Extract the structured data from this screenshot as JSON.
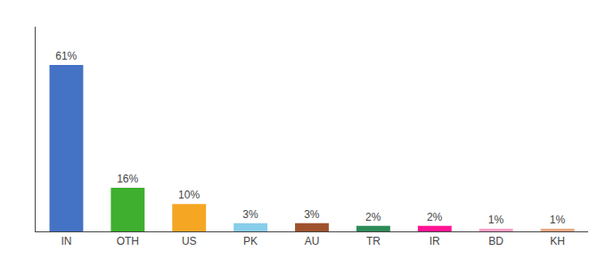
{
  "chart_data": {
    "type": "bar",
    "categories": [
      "IN",
      "OTH",
      "US",
      "PK",
      "AU",
      "TR",
      "IR",
      "BD",
      "KH"
    ],
    "values": [
      61,
      16,
      10,
      3,
      3,
      2,
      2,
      1,
      1
    ],
    "value_labels": [
      "61%",
      "16%",
      "10%",
      "3%",
      "3%",
      "2%",
      "2%",
      "1%",
      "1%"
    ],
    "colors": [
      "#4472C4",
      "#3EAF2E",
      "#F5A623",
      "#87CEEB",
      "#A0522D",
      "#2E8B57",
      "#FF1493",
      "#FF9EC4",
      "#E8A882"
    ],
    "ylim": [
      0,
      75
    ],
    "data_labels": true,
    "tick_labels": "x",
    "grid": false
  }
}
